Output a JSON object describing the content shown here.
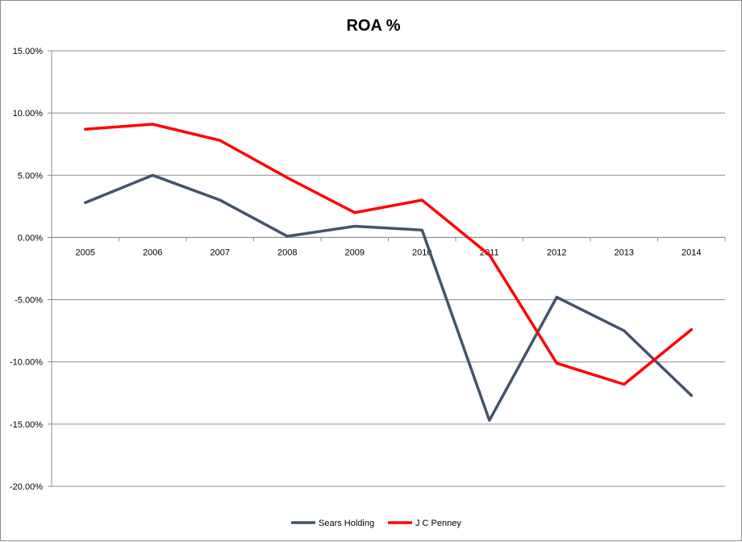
{
  "chart_data": {
    "type": "line",
    "title": "ROA %",
    "xlabel": "",
    "ylabel": "",
    "categories": [
      "2005",
      "2006",
      "2007",
      "2008",
      "2009",
      "2010",
      "2011",
      "2012",
      "2013",
      "2014"
    ],
    "y_ticks": [
      "15.00%",
      "10.00%",
      "5.00%",
      "0.00%",
      "-5.00%",
      "-10.00%",
      "-15.00%",
      "-20.00%"
    ],
    "ylim": [
      -20,
      15
    ],
    "y_unit": "%",
    "grid": "horizontal",
    "legend_position": "bottom",
    "series": [
      {
        "name": "Sears Holding",
        "color": "#44546a",
        "values": [
          2.8,
          5.0,
          3.0,
          0.1,
          0.9,
          0.6,
          -14.7,
          -4.8,
          -7.5,
          -12.7
        ]
      },
      {
        "name": "J C Penney",
        "color": "#ff0000",
        "values": [
          8.7,
          9.1,
          7.8,
          4.8,
          2.0,
          3.0,
          -1.4,
          -10.1,
          -11.8,
          -7.4
        ]
      }
    ]
  }
}
